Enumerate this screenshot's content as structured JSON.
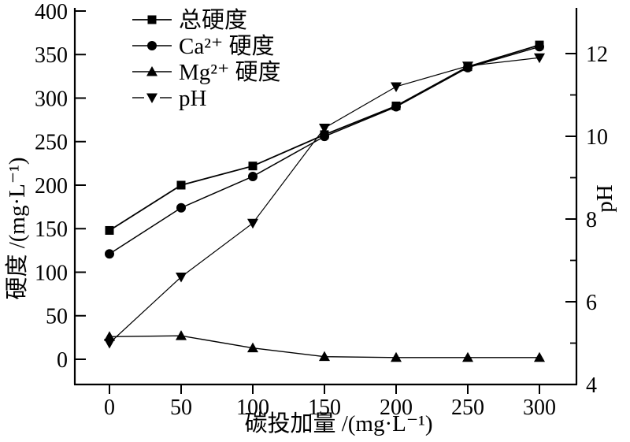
{
  "figure": {
    "background": "#ffffff",
    "ink": "#000000"
  },
  "chart_data": {
    "type": "line",
    "title": "",
    "grid": false,
    "legend_position": "top-left",
    "x": [
      0,
      50,
      100,
      150,
      200,
      250,
      300
    ],
    "x_ticks": [
      0,
      50,
      100,
      150,
      200,
      250,
      300
    ],
    "xlabel": "碳投加量 /(mg·L⁻¹)",
    "x_range": [
      0,
      300
    ],
    "y_left": {
      "label": "硬度 /(mg·L⁻¹)",
      "range": [
        0,
        400
      ],
      "ticks": [
        0,
        50,
        100,
        150,
        200,
        250,
        300,
        350,
        400
      ]
    },
    "y_right": {
      "label": "pH",
      "range": [
        4,
        12
      ],
      "major_ticks": [
        4,
        6,
        8,
        10,
        12
      ],
      "minor_ticks": [
        5,
        7,
        9,
        11
      ]
    },
    "series": [
      {
        "name": "总硬度",
        "marker": "square",
        "axis": "left",
        "values": [
          148,
          200,
          222,
          258,
          291,
          336,
          361
        ]
      },
      {
        "name": "Ca²⁺ 硬度",
        "marker": "circle",
        "axis": "left",
        "values": [
          121,
          174,
          210,
          256,
          290,
          335,
          359
        ]
      },
      {
        "name": "Mg²⁺ 硬度",
        "marker": "triangle-up",
        "axis": "left",
        "values": [
          26,
          27,
          13,
          3,
          2,
          2,
          2
        ]
      },
      {
        "name": "pH",
        "marker": "triangle-down",
        "axis": "right",
        "values": [
          5.0,
          6.6,
          7.9,
          10.2,
          11.2,
          11.7,
          11.9
        ]
      }
    ]
  }
}
